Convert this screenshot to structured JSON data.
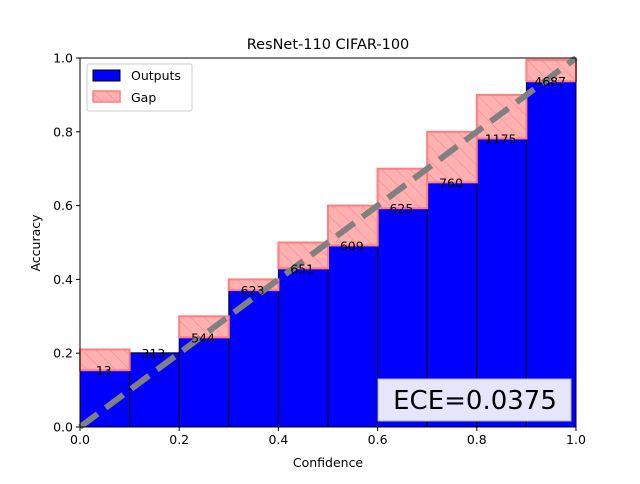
{
  "chart_data": {
    "type": "bar",
    "title": "ResNet-110 CIFAR-100",
    "xlabel": "Confidence",
    "ylabel": "Accuracy",
    "xlim": [
      0.0,
      1.0
    ],
    "ylim": [
      0.0,
      1.0
    ],
    "xticks": [
      "0.0",
      "0.2",
      "0.4",
      "0.6",
      "0.8",
      "1.0"
    ],
    "yticks": [
      "0.0",
      "0.2",
      "0.4",
      "0.6",
      "0.8",
      "1.0"
    ],
    "bins": [
      {
        "lo": 0.0,
        "hi": 0.1,
        "accuracy": 0.154,
        "confidence_top": 0.21,
        "count": "13"
      },
      {
        "lo": 0.1,
        "hi": 0.2,
        "accuracy": 0.201,
        "confidence_top": 0.2,
        "count": "313"
      },
      {
        "lo": 0.2,
        "hi": 0.3,
        "accuracy": 0.243,
        "confidence_top": 0.3,
        "count": "544"
      },
      {
        "lo": 0.3,
        "hi": 0.4,
        "accuracy": 0.371,
        "confidence_top": 0.4,
        "count": "623"
      },
      {
        "lo": 0.4,
        "hi": 0.5,
        "accuracy": 0.43,
        "confidence_top": 0.5,
        "count": "651"
      },
      {
        "lo": 0.5,
        "hi": 0.6,
        "accuracy": 0.492,
        "confidence_top": 0.6,
        "count": "609"
      },
      {
        "lo": 0.6,
        "hi": 0.7,
        "accuracy": 0.593,
        "confidence_top": 0.7,
        "count": "625"
      },
      {
        "lo": 0.7,
        "hi": 0.8,
        "accuracy": 0.663,
        "confidence_top": 0.8,
        "count": "760"
      },
      {
        "lo": 0.8,
        "hi": 0.9,
        "accuracy": 0.782,
        "confidence_top": 0.9,
        "count": "1175"
      },
      {
        "lo": 0.9,
        "hi": 1.0,
        "accuracy": 0.937,
        "confidence_top": 0.995,
        "count": "4687"
      }
    ],
    "legend": {
      "placement": "top-left",
      "items": [
        {
          "label": "Outputs",
          "color": "#0000ff"
        },
        {
          "label": "Gap",
          "color": "#ffb0b0"
        }
      ]
    },
    "annotation": "ECE=0.0375",
    "diagonal": {
      "from": [
        0,
        0
      ],
      "to": [
        1,
        1
      ],
      "color": "#808080",
      "style": "dashed"
    },
    "colors": {
      "outputs_fill": "#0000ff",
      "outputs_edge": "#000000",
      "gap_fill": "#ffb0b0",
      "gap_edge": "#ff7f7f",
      "ece_box_fill": "#e6e6fa"
    }
  }
}
